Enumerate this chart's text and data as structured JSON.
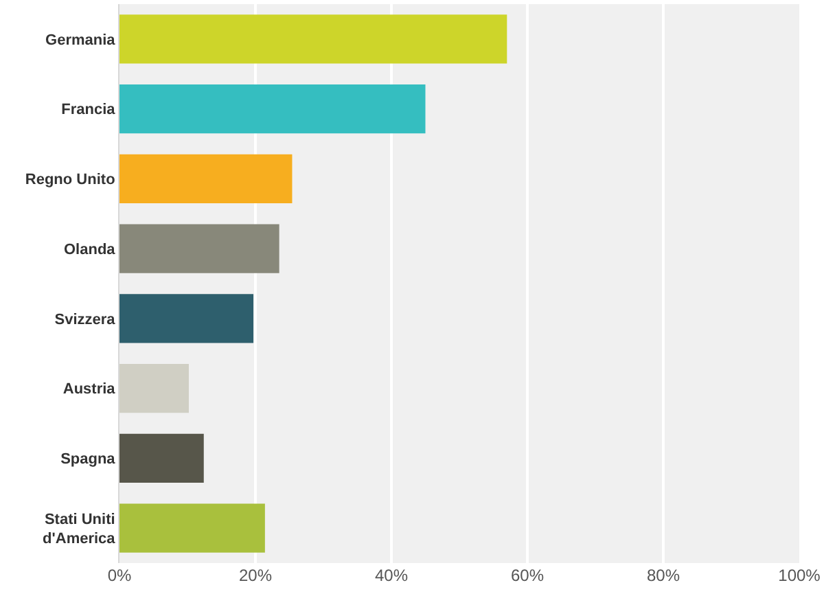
{
  "chart_data": {
    "type": "bar",
    "orientation": "horizontal",
    "categories": [
      "Germania",
      "Francia",
      "Regno Unito",
      "Olanda",
      "Svizzera",
      "Austria",
      "Spagna",
      "Stati Uniti d'America"
    ],
    "values": [
      57,
      45,
      25.4,
      23.5,
      19.7,
      10.2,
      12.4,
      21.4
    ],
    "colors": [
      "#cdd52a",
      "#35bec0",
      "#f7ae1f",
      "#88887a",
      "#2e5f6d",
      "#d0cfc4",
      "#57564a",
      "#a9c03d"
    ],
    "xlim": [
      0,
      100
    ],
    "xticks": [
      {
        "value": 0,
        "label": "0%"
      },
      {
        "value": 20,
        "label": "20%"
      },
      {
        "value": 40,
        "label": "40%"
      },
      {
        "value": 60,
        "label": "60%"
      },
      {
        "value": 80,
        "label": "80%"
      },
      {
        "value": 100,
        "label": "100%"
      }
    ],
    "grid": "x"
  }
}
